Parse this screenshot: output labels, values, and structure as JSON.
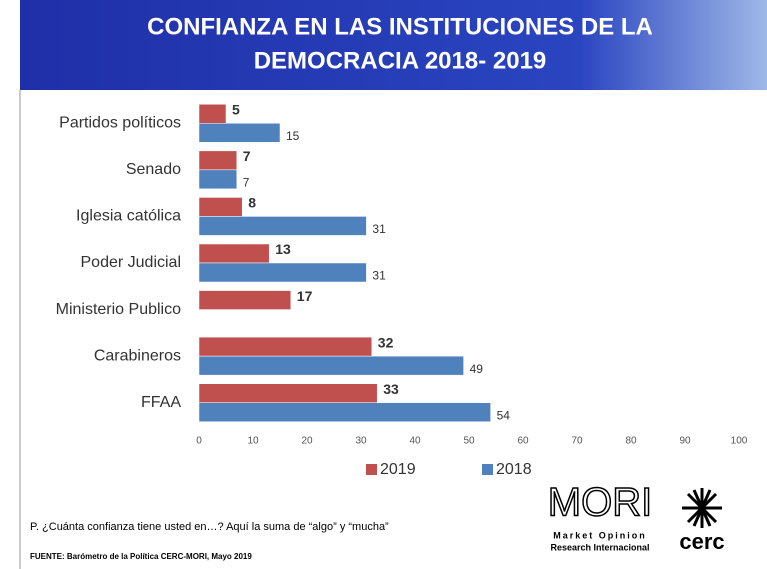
{
  "chart_data": {
    "type": "hbar",
    "title": [
      "CONFIANZA EN LAS INSTITUCIONES DE LA",
      "DEMOCRACIA 2018- 2019"
    ],
    "categories": [
      "Partidos políticos",
      "Senado",
      "Iglesia católica",
      "Poder Judicial",
      "Ministerio Publico",
      "Carabineros",
      "FFAA"
    ],
    "series": [
      {
        "name": "2019",
        "color": "#c0504d",
        "values": [
          5,
          7,
          8,
          13,
          17,
          32,
          33
        ]
      },
      {
        "name": "2018",
        "color": "#4f81bd",
        "values": [
          15,
          7,
          31,
          31,
          null,
          49,
          54
        ]
      }
    ],
    "xlim": [
      0,
      100
    ],
    "xticks": [
      0,
      10,
      20,
      30,
      40,
      50,
      60,
      70,
      80,
      90,
      100
    ],
    "legend": "bottom",
    "question": "P. ¿Cuánta confianza tiene usted en…? Aquí la suma de “algo” y “mucha”",
    "source": "FUENTE: Barómetro de la Política CERC-MORI, Mayo 2019",
    "logos": {
      "mori": "MORI",
      "mori_line1": "Market Opinion",
      "mori_line2": "Research Internacional",
      "cerc": "cerc"
    }
  }
}
